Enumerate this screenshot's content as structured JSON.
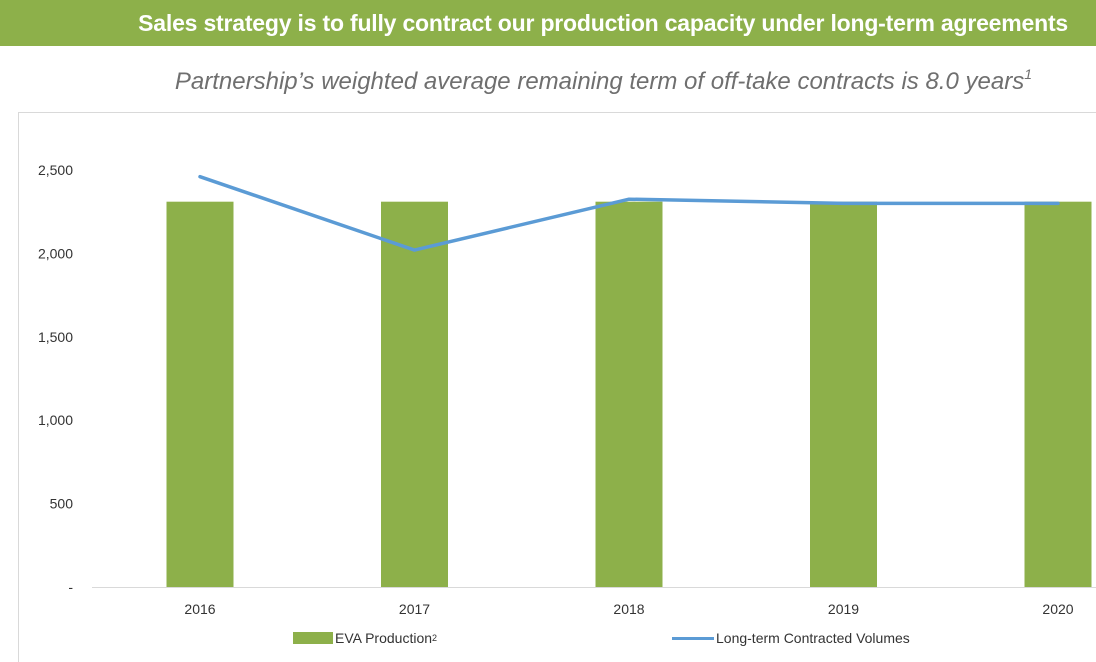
{
  "header": {
    "title": "Sales strategy is to fully contract our production capacity under long-term agreements"
  },
  "subtitle": {
    "text": "Partnership’s weighted average remaining term of off-take contracts is 8.0 years",
    "footnote": "1"
  },
  "legend": {
    "bars_label": "EVA Production",
    "bars_footnote": "2",
    "line_label": "Long-term Contracted Volumes"
  },
  "colors": {
    "banner": "#8db04a",
    "bars": "#8db04a",
    "line": "#5b9bd5"
  },
  "chart_data": {
    "type": "bar",
    "categories": [
      "2016",
      "2017",
      "2018",
      "2019",
      "2020"
    ],
    "series": [
      {
        "name": "EVA Production",
        "kind": "bar",
        "values": [
          2310,
          2310,
          2310,
          2310,
          2310
        ]
      },
      {
        "name": "Long-term Contracted Volumes",
        "kind": "line",
        "values": [
          2460,
          2020,
          2325,
          2300,
          2300
        ]
      }
    ],
    "ylim": [
      0,
      2500
    ],
    "yticks": [
      0,
      500,
      1000,
      1500,
      2000,
      2500
    ],
    "ytick_labels": [
      "-",
      "500",
      "1,000",
      "1,500",
      "2,000",
      "2,500"
    ],
    "grid": false,
    "title": "",
    "xlabel": "",
    "ylabel": ""
  }
}
